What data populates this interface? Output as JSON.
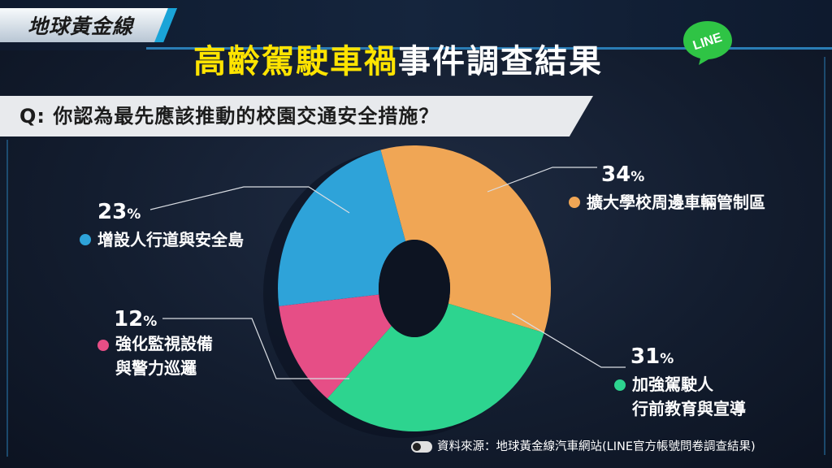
{
  "brand": {
    "logo_text": "地球黃金線"
  },
  "title": {
    "highlight": "高齡駕駛車禍",
    "rest": "事件調查結果"
  },
  "badge": {
    "text": "LINE",
    "color": "#2fc445"
  },
  "question": "Q: 你認為最先應該推動的校園交通安全措施？",
  "source": "資料來源：地球黃金線汽車網站(LINE官方帳號問卷調查結果)",
  "colors": {
    "accent": "#ffe400",
    "frame": "#2a7db5"
  },
  "chart_data": {
    "type": "pie",
    "variant": "donut",
    "title": "",
    "slices": [
      {
        "label": "擴大學校周邊車輛管制區",
        "value": 34,
        "display": "34",
        "color": "#f0a655"
      },
      {
        "label": "加強駕駛人行前教育與宣導",
        "display_lines": [
          "加強駕駛人",
          "行前教育與宣導"
        ],
        "value": 31,
        "display": "31",
        "color": "#2dd48f"
      },
      {
        "label": "強化監視設備與警力巡邏",
        "display_lines": [
          "強化監視設備",
          "與警力巡邏"
        ],
        "value": 12,
        "display": "12",
        "color": "#e64e86"
      },
      {
        "label": "增設人行道與安全島",
        "value": 23,
        "display": "23",
        "color": "#2ea3d9"
      }
    ],
    "unit": "%"
  }
}
